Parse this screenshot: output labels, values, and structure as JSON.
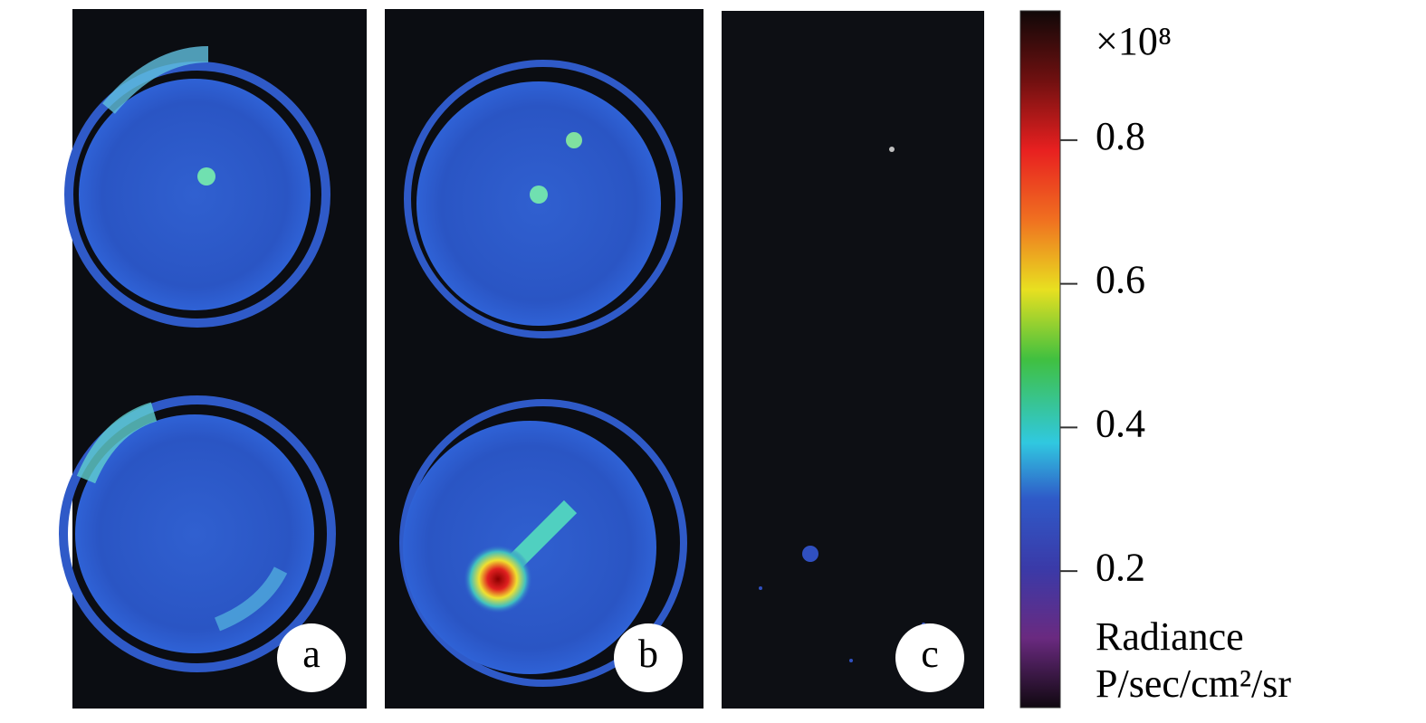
{
  "panels": [
    {
      "label": "a"
    },
    {
      "label": "b"
    },
    {
      "label": "c"
    }
  ],
  "colorbar": {
    "multiplier": "×10⁸",
    "ylim": [
      0.01,
      0.98
    ],
    "yticks": [
      0.2,
      0.4,
      0.6,
      0.8
    ],
    "label": "Radiance",
    "unit": "P/sec/cm²/sr"
  }
}
